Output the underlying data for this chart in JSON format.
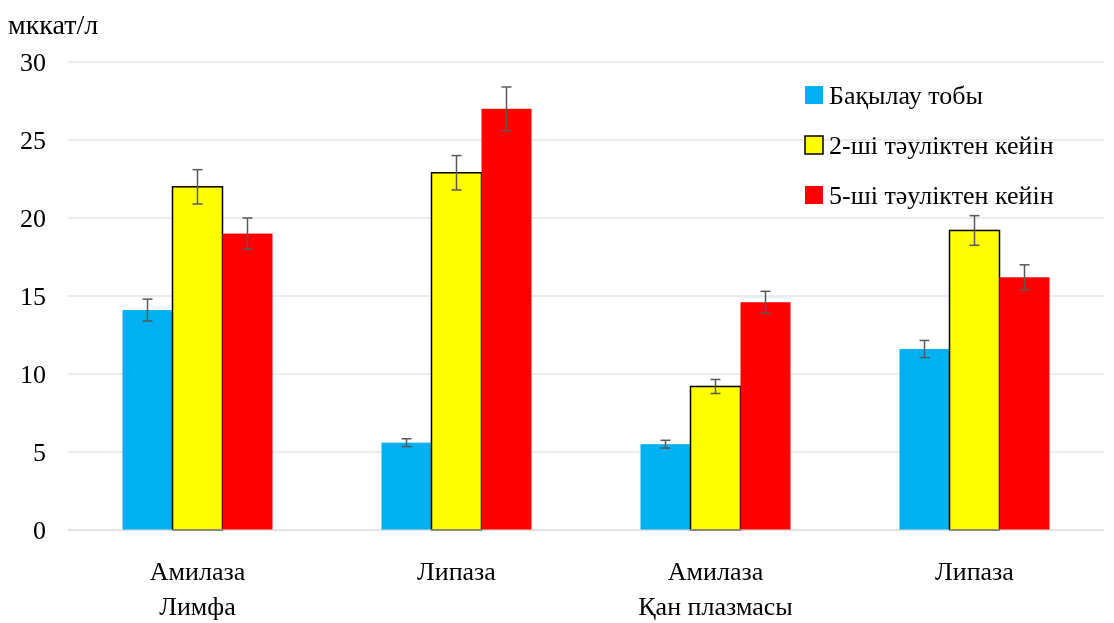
{
  "chart_data": {
    "type": "bar",
    "ylabel": "мккат/л",
    "categories": [
      "Амилаза",
      "Липаза",
      "Амилаза",
      "Липаза"
    ],
    "annotations": [
      "Лимфа",
      "Қан плазмасы"
    ],
    "series": [
      {
        "name": "Бақылау тобы",
        "color": "#00b0f0",
        "values": [
          14.1,
          5.6,
          5.5,
          11.6
        ],
        "errors": [
          0.7,
          0.25,
          0.25,
          0.55
        ]
      },
      {
        "name": "2-ші тәуліктен кейін",
        "color": "#ffff00",
        "values": [
          22.0,
          22.9,
          9.2,
          19.2
        ],
        "errors": [
          1.1,
          1.1,
          0.45,
          0.95
        ]
      },
      {
        "name": "5-ші тәуліктен кейін",
        "color": "#ff0000",
        "values": [
          19.0,
          27.0,
          14.6,
          16.2
        ],
        "errors": [
          1.0,
          1.4,
          0.7,
          0.8
        ]
      }
    ],
    "ylim": [
      0,
      30
    ],
    "yticks": [
      0,
      5,
      10,
      15,
      20,
      25,
      30
    ],
    "grid": "y",
    "legend": "top right"
  }
}
